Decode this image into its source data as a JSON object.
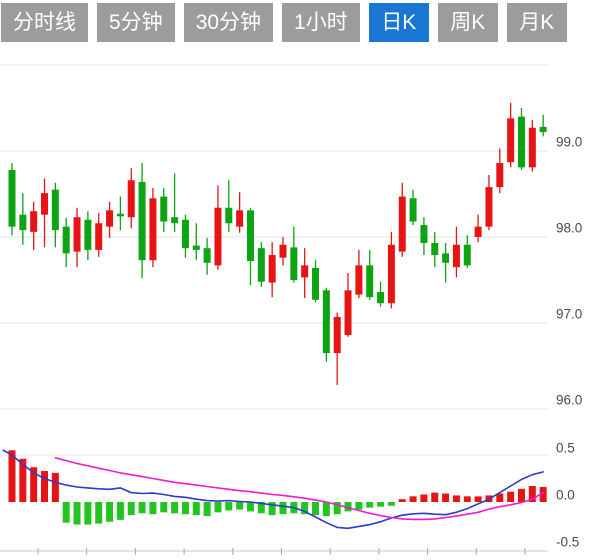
{
  "toolbar": {
    "tabs": [
      {
        "label": "分时线",
        "active": false
      },
      {
        "label": "5分钟",
        "active": false
      },
      {
        "label": "30分钟",
        "active": false
      },
      {
        "label": "1小时",
        "active": false
      },
      {
        "label": "日K",
        "active": true
      },
      {
        "label": "周K",
        "active": false
      },
      {
        "label": "月K",
        "active": false
      }
    ]
  },
  "colors": {
    "up": "#e61414",
    "down": "#0da414",
    "hist_down": "#22c41f",
    "dif": "#2a3cc8",
    "dea": "#f219cf",
    "grid": "#e3e3e3",
    "axis_line": "#c9c9c9",
    "tick": "#a8a8a8",
    "axis_label": "#4a4a4a",
    "tab_bg": "#9c9c9c",
    "tab_active_bg": "#1976d2",
    "tab_text": "#ffffff"
  },
  "chart_data": [
    {
      "type": "candlestick",
      "panel": "price",
      "legend_position": "none",
      "grid": true,
      "ylim": [
        95.9,
        100.2
      ],
      "y_gridlines": [
        100.0,
        99.0,
        98.0,
        97.0,
        96.0
      ],
      "y_ticks": [
        {
          "label": "99.0",
          "value": 99.0
        },
        {
          "label": "98.0",
          "value": 98.0
        },
        {
          "label": "97.0",
          "value": 97.0
        },
        {
          "label": "96.0",
          "value": 96.0
        }
      ],
      "candles_ohlc": [
        [
          98.78,
          98.86,
          98.02,
          98.12
        ],
        [
          98.26,
          98.51,
          97.91,
          98.08
        ],
        [
          98.06,
          98.41,
          97.85,
          98.3
        ],
        [
          98.26,
          98.68,
          97.88,
          98.51
        ],
        [
          98.55,
          98.63,
          97.88,
          98.08
        ],
        [
          98.12,
          98.22,
          97.65,
          97.81
        ],
        [
          97.83,
          98.34,
          97.65,
          98.23
        ],
        [
          98.2,
          98.3,
          97.73,
          97.85
        ],
        [
          97.85,
          98.28,
          97.77,
          98.16
        ],
        [
          98.12,
          98.41,
          97.99,
          98.31
        ],
        [
          98.27,
          98.47,
          98.08,
          98.24
        ],
        [
          98.23,
          98.8,
          98.1,
          98.66
        ],
        [
          98.64,
          98.86,
          97.52,
          97.73
        ],
        [
          97.73,
          98.57,
          97.65,
          98.45
        ],
        [
          98.47,
          98.57,
          98.06,
          98.18
        ],
        [
          98.23,
          98.74,
          98.06,
          98.16
        ],
        [
          98.2,
          98.26,
          97.76,
          97.87
        ],
        [
          97.9,
          98.16,
          97.73,
          97.85
        ],
        [
          97.87,
          97.99,
          97.56,
          97.7
        ],
        [
          97.67,
          98.6,
          97.62,
          98.34
        ],
        [
          98.34,
          98.66,
          98.06,
          98.16
        ],
        [
          98.12,
          98.52,
          98.05,
          98.31
        ],
        [
          98.31,
          98.34,
          97.44,
          97.72
        ],
        [
          97.87,
          97.94,
          97.42,
          97.48
        ],
        [
          97.47,
          97.94,
          97.3,
          97.79
        ],
        [
          97.76,
          98.0,
          97.67,
          97.91
        ],
        [
          97.88,
          98.12,
          97.47,
          97.5
        ],
        [
          97.53,
          97.87,
          97.29,
          97.67
        ],
        [
          97.64,
          97.73,
          97.24,
          97.27
        ],
        [
          97.38,
          97.41,
          96.55,
          96.65
        ],
        [
          96.65,
          97.12,
          96.28,
          97.07
        ],
        [
          96.86,
          97.58,
          96.84,
          97.38
        ],
        [
          97.33,
          97.85,
          97.29,
          97.67
        ],
        [
          97.67,
          97.85,
          97.27,
          97.3
        ],
        [
          97.36,
          97.48,
          97.19,
          97.23
        ],
        [
          97.23,
          98.06,
          97.17,
          97.91
        ],
        [
          97.83,
          98.63,
          97.77,
          98.47
        ],
        [
          98.45,
          98.55,
          98.14,
          98.18
        ],
        [
          98.14,
          98.23,
          97.79,
          97.93
        ],
        [
          97.93,
          98.06,
          97.65,
          97.79
        ],
        [
          97.81,
          97.93,
          97.47,
          97.7
        ],
        [
          97.65,
          98.12,
          97.53,
          97.91
        ],
        [
          97.91,
          98.02,
          97.64,
          97.67
        ],
        [
          98.0,
          98.26,
          97.94,
          98.12
        ],
        [
          98.12,
          98.72,
          98.08,
          98.58
        ],
        [
          98.58,
          99.03,
          98.51,
          98.86
        ],
        [
          98.87,
          99.56,
          98.81,
          99.38
        ],
        [
          99.4,
          99.5,
          98.78,
          98.81
        ],
        [
          98.81,
          99.36,
          98.76,
          99.27
        ],
        [
          99.28,
          99.42,
          99.17,
          99.22
        ]
      ]
    },
    {
      "type": "bar",
      "panel": "macd",
      "grid": true,
      "ylim": [
        -0.55,
        0.6
      ],
      "y_gridlines": [
        0.5
      ],
      "y_ticks": [
        {
          "label": "0.5",
          "value": 0.5
        },
        {
          "label": "0.0",
          "value": 0.0
        },
        {
          "label": "-0.5",
          "value": -0.5
        }
      ],
      "histogram": [
        0.55,
        0.46,
        0.37,
        0.33,
        0.31,
        -0.22,
        -0.24,
        -0.24,
        -0.23,
        -0.21,
        -0.19,
        -0.14,
        -0.12,
        -0.13,
        -0.11,
        -0.12,
        -0.13,
        -0.14,
        -0.15,
        -0.11,
        -0.09,
        -0.08,
        -0.1,
        -0.12,
        -0.14,
        -0.13,
        -0.12,
        -0.13,
        -0.14,
        -0.15,
        -0.13,
        -0.1,
        -0.08,
        -0.06,
        -0.05,
        -0.04,
        0.03,
        0.06,
        0.08,
        0.1,
        0.09,
        0.07,
        0.06,
        0.06,
        0.07,
        0.09,
        0.11,
        0.14,
        0.17,
        0.16
      ],
      "series": [
        {
          "name": "DIF",
          "color_key": "dif",
          "points": [
            [
              -0.8,
              0.55
            ],
            [
              0,
              0.5
            ],
            [
              1,
              0.4
            ],
            [
              2,
              0.31
            ],
            [
              3,
              0.25
            ],
            [
              4,
              0.21
            ],
            [
              5,
              0.18
            ],
            [
              6,
              0.16
            ],
            [
              7,
              0.15
            ],
            [
              8,
              0.14
            ],
            [
              9,
              0.135
            ],
            [
              10,
              0.15
            ],
            [
              11,
              0.1
            ],
            [
              12,
              0.09
            ],
            [
              13,
              0.095
            ],
            [
              14,
              0.08
            ],
            [
              15,
              0.06
            ],
            [
              16,
              0.05
            ],
            [
              17,
              0.03
            ],
            [
              18,
              0.015
            ],
            [
              19,
              0.01
            ],
            [
              20,
              0.015
            ],
            [
              21,
              0.005
            ],
            [
              22,
              0.0
            ],
            [
              23,
              -0.015
            ],
            [
              24,
              -0.03
            ],
            [
              25,
              -0.045
            ],
            [
              26,
              -0.06
            ],
            [
              27,
              -0.1
            ],
            [
              28,
              -0.16
            ],
            [
              29,
              -0.22
            ],
            [
              30,
              -0.27
            ],
            [
              31,
              -0.28
            ],
            [
              32,
              -0.26
            ],
            [
              33,
              -0.24
            ],
            [
              34,
              -0.21
            ],
            [
              35,
              -0.17
            ],
            [
              36,
              -0.14
            ],
            [
              37,
              -0.125
            ],
            [
              38,
              -0.12
            ],
            [
              39,
              -0.13
            ],
            [
              40,
              -0.135
            ],
            [
              41,
              -0.11
            ],
            [
              42,
              -0.07
            ],
            [
              43,
              -0.02
            ],
            [
              44,
              0.03
            ],
            [
              45,
              0.1
            ],
            [
              46,
              0.17
            ],
            [
              47,
              0.24
            ],
            [
              48,
              0.29
            ],
            [
              49,
              0.32
            ]
          ]
        },
        {
          "name": "DEA",
          "color_key": "dea",
          "points": [
            [
              4,
              0.47
            ],
            [
              5,
              0.44
            ],
            [
              6,
              0.41
            ],
            [
              7,
              0.385
            ],
            [
              8,
              0.36
            ],
            [
              9,
              0.335
            ],
            [
              10,
              0.31
            ],
            [
              11,
              0.29
            ],
            [
              12,
              0.27
            ],
            [
              13,
              0.25
            ],
            [
              14,
              0.23
            ],
            [
              15,
              0.21
            ],
            [
              16,
              0.195
            ],
            [
              17,
              0.18
            ],
            [
              18,
              0.165
            ],
            [
              19,
              0.15
            ],
            [
              20,
              0.135
            ],
            [
              21,
              0.12
            ],
            [
              22,
              0.11
            ],
            [
              23,
              0.095
            ],
            [
              24,
              0.08
            ],
            [
              25,
              0.07
            ],
            [
              26,
              0.055
            ],
            [
              27,
              0.04
            ],
            [
              28,
              0.02
            ],
            [
              29,
              0.0
            ],
            [
              30,
              -0.03
            ],
            [
              31,
              -0.06
            ],
            [
              32,
              -0.09
            ],
            [
              33,
              -0.12
            ],
            [
              34,
              -0.145
            ],
            [
              35,
              -0.165
            ],
            [
              36,
              -0.18
            ],
            [
              37,
              -0.185
            ],
            [
              38,
              -0.185
            ],
            [
              39,
              -0.18
            ],
            [
              40,
              -0.165
            ],
            [
              41,
              -0.15
            ],
            [
              42,
              -0.13
            ],
            [
              43,
              -0.11
            ],
            [
              44,
              -0.075
            ],
            [
              45,
              -0.05
            ],
            [
              46,
              -0.03
            ],
            [
              47,
              -0.005
            ],
            [
              48,
              0.03
            ],
            [
              49,
              0.1
            ]
          ]
        }
      ],
      "x_axis": {
        "tick_count": 11
      }
    }
  ]
}
